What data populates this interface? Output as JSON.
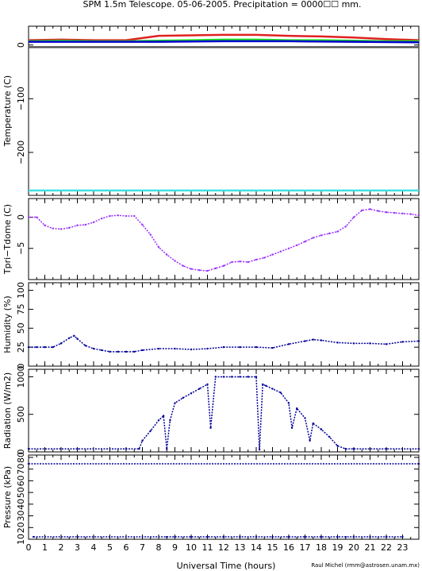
{
  "title": "SPM 1.5m Telescope. 05-06-2005. Precipitation = 0000☐☐ mm.",
  "xlabel": "Universal Time (hours)",
  "credit": "Raul Michel (rmm@astrosen.unam.mx)",
  "x_ticks": [
    "0",
    "1",
    "2",
    "3",
    "4",
    "5",
    "6",
    "7",
    "8",
    "9",
    "10",
    "11",
    "12",
    "13",
    "14",
    "15",
    "16",
    "17",
    "18",
    "19",
    "20",
    "21",
    "22",
    "23"
  ],
  "colors": {
    "red": "#e02020",
    "green": "#22dd22",
    "blue": "#0000cc",
    "dark_gray": "#555555",
    "cyan": "#40e0e0",
    "purple": "#9933ff",
    "navy": "#000099"
  },
  "chart_data": [
    {
      "type": "line",
      "panel": "temperature",
      "ylabel": "Temperature (C)",
      "xlim": [
        0,
        24
      ],
      "ylim": [
        -280,
        35
      ],
      "y_ticks": [
        "0",
        "−100",
        "−200"
      ],
      "series": [
        {
          "color": "red",
          "x": [
            0,
            2,
            4,
            6,
            7,
            8,
            10,
            12,
            14,
            16,
            18,
            20,
            22,
            24
          ],
          "y": [
            9,
            10,
            9,
            9,
            13,
            17,
            18,
            19,
            19,
            17,
            16,
            14,
            11,
            9
          ]
        },
        {
          "color": "green",
          "x": [
            0,
            2,
            4,
            6,
            8,
            10,
            12,
            14,
            16,
            18,
            20,
            22,
            24
          ],
          "y": [
            7,
            8,
            7,
            7,
            8,
            9,
            10,
            10,
            9,
            9,
            8,
            7,
            7
          ]
        },
        {
          "color": "blue",
          "x": [
            0,
            4,
            8,
            12,
            16,
            20,
            24
          ],
          "y": [
            6,
            6,
            6,
            7,
            7,
            6,
            5
          ]
        },
        {
          "color": "dark_gray",
          "x": [
            0,
            24
          ],
          "y": [
            -4,
            -4
          ]
        },
        {
          "color": "cyan",
          "x": [
            0,
            24
          ],
          "y": [
            -271,
            -271
          ]
        }
      ]
    },
    {
      "type": "scatter",
      "panel": "tpri_tdome",
      "ylabel": "Tpri−Tdome (C)",
      "xlim": [
        0,
        24
      ],
      "ylim": [
        -10,
        3
      ],
      "y_ticks": [
        "0",
        "−5"
      ],
      "series": [
        {
          "color": "purple",
          "x": [
            0,
            0.5,
            1,
            1.5,
            2,
            2.5,
            3,
            3.5,
            4,
            4.5,
            5,
            5.5,
            6,
            6.5,
            7,
            7.5,
            8,
            8.5,
            9,
            9.5,
            10,
            10.5,
            11,
            11.5,
            12,
            12.5,
            13,
            13.5,
            14,
            14.5,
            15,
            15.5,
            16,
            16.5,
            17,
            17.5,
            18,
            18.5,
            19,
            19.5,
            20,
            20.5,
            21,
            21.5,
            22,
            22.5,
            23,
            23.5,
            24
          ],
          "y": [
            0,
            0,
            -1.3,
            -1.8,
            -1.9,
            -1.7,
            -1.3,
            -1.2,
            -0.8,
            -0.2,
            0.2,
            0.3,
            0.2,
            0.2,
            -1.2,
            -2.8,
            -4.8,
            -6,
            -7,
            -7.8,
            -8.3,
            -8.5,
            -8.6,
            -8.2,
            -7.8,
            -7.2,
            -7.1,
            -7.2,
            -6.8,
            -6.5,
            -6,
            -5.5,
            -5,
            -4.5,
            -3.9,
            -3.3,
            -2.9,
            -2.6,
            -2.3,
            -1.5,
            0,
            1.1,
            1.3,
            1,
            0.8,
            0.7,
            0.6,
            0.5,
            0.3
          ]
        }
      ]
    },
    {
      "type": "scatter",
      "panel": "humidity",
      "ylabel": "Humidity (%)",
      "xlim": [
        0,
        24
      ],
      "ylim": [
        0,
        110
      ],
      "y_ticks": [
        "0",
        "25",
        "50",
        "75",
        "100"
      ],
      "series": [
        {
          "color": "navy",
          "x": [
            0,
            0.5,
            1,
            1.5,
            2,
            2.5,
            2.8,
            3,
            3.5,
            4,
            4.5,
            5,
            5.5,
            6,
            6.5,
            7,
            8,
            9,
            10,
            11,
            12,
            13,
            14,
            15,
            16,
            17,
            17.5,
            18,
            19,
            20,
            21,
            22,
            23,
            24
          ],
          "y": [
            25,
            25,
            25,
            25,
            30,
            37,
            40,
            36,
            27,
            23,
            21,
            19,
            19,
            19,
            19,
            21,
            23,
            23,
            22,
            23,
            25,
            25,
            25,
            24,
            29,
            33,
            35,
            34,
            31,
            30,
            30,
            29,
            32,
            33
          ]
        }
      ]
    },
    {
      "type": "scatter",
      "panel": "radiation",
      "ylabel": "Radiation (W/m2)",
      "xlim": [
        0,
        24
      ],
      "ylim": [
        0,
        1100
      ],
      "y_ticks": [
        "0",
        "500",
        "1000"
      ],
      "series": [
        {
          "color": "navy",
          "x": [
            0,
            3,
            6,
            6.8,
            7,
            7.5,
            8,
            8.3,
            8.5,
            8.7,
            9,
            9.5,
            10,
            10.5,
            11,
            11.2,
            11.5,
            12,
            12.5,
            13,
            13.5,
            14,
            14.2,
            14.4,
            14.6,
            15,
            15.5,
            16,
            16.2,
            16.5,
            17,
            17.3,
            17.5,
            18,
            18.5,
            19,
            19.5,
            20,
            22,
            24
          ],
          "y": [
            40,
            40,
            40,
            40,
            150,
            280,
            420,
            480,
            40,
            420,
            650,
            720,
            780,
            840,
            900,
            320,
            1000,
            1000,
            1000,
            1000,
            1000,
            1000,
            30,
            900,
            880,
            840,
            790,
            650,
            320,
            580,
            450,
            150,
            380,
            300,
            200,
            80,
            40,
            40,
            40,
            40
          ]
        }
      ]
    },
    {
      "type": "scatter",
      "panel": "pressure",
      "ylabel": "Pressure (kPa)",
      "xlim": [
        0,
        24
      ],
      "ylim": [
        10,
        82
      ],
      "y_ticks": [
        "80",
        "70",
        "60",
        "50",
        "40",
        "30",
        "20",
        "10"
      ],
      "series": [
        {
          "color": "navy",
          "x": [
            0,
            24
          ],
          "y": [
            74.5,
            74.5
          ]
        },
        {
          "color": "navy",
          "x": [
            0.3,
            8.5,
            9,
            10,
            11,
            12,
            13,
            14,
            15,
            16,
            17,
            18,
            19,
            19.5,
            20,
            21,
            22,
            23
          ],
          "y": [
            12,
            12,
            12,
            12,
            12,
            12,
            12,
            12,
            12,
            12,
            12,
            12,
            12,
            12,
            12,
            12,
            12,
            12
          ]
        }
      ]
    }
  ]
}
